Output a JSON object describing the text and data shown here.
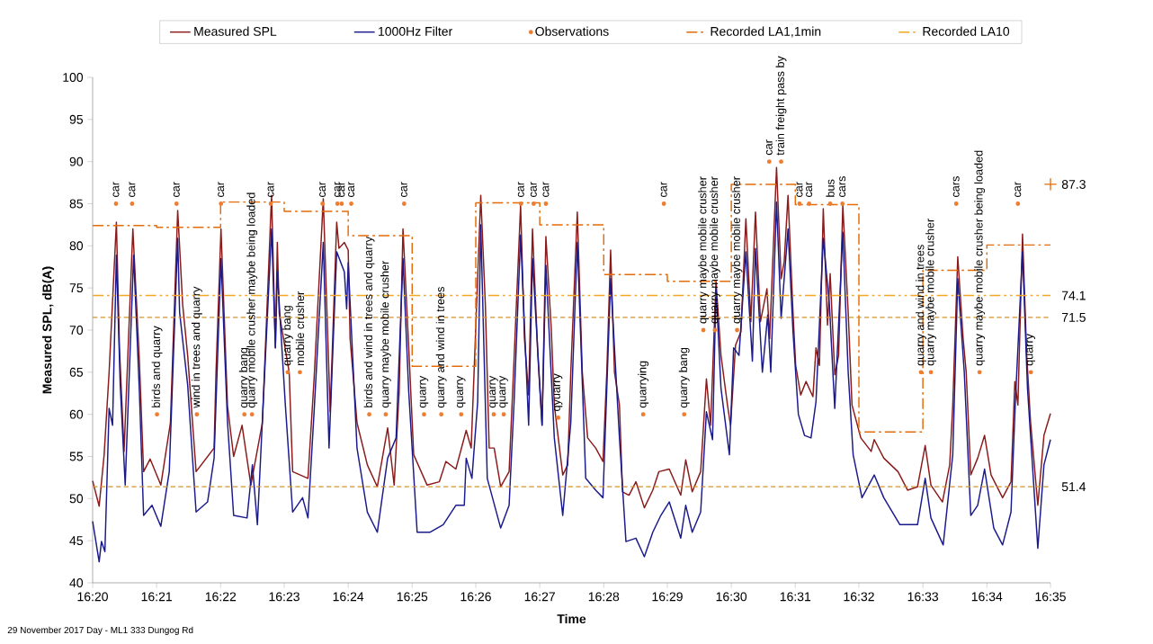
{
  "chart_data": {
    "type": "line",
    "xlabel": "Time",
    "ylabel": "Measured SPL, dB(A)",
    "xlim": [
      16.3333,
      16.5833
    ],
    "ylim": [
      40,
      100
    ],
    "xticks": [
      {
        "value": 16.3333,
        "label": "16:20"
      },
      {
        "value": 16.35,
        "label": "16:21"
      },
      {
        "value": 16.3667,
        "label": "16:22"
      },
      {
        "value": 16.3833,
        "label": "16:23"
      },
      {
        "value": 16.4,
        "label": "16:24"
      },
      {
        "value": 16.4167,
        "label": "16:25"
      },
      {
        "value": 16.4333,
        "label": "16:26"
      },
      {
        "value": 16.45,
        "label": "16:27"
      },
      {
        "value": 16.4667,
        "label": "16:28"
      },
      {
        "value": 16.4833,
        "label": "16:29"
      },
      {
        "value": 16.5,
        "label": "16:30"
      },
      {
        "value": 16.5167,
        "label": "16:31"
      },
      {
        "value": 16.5333,
        "label": "16:32"
      },
      {
        "value": 16.55,
        "label": "16:33"
      },
      {
        "value": 16.5667,
        "label": "16:34"
      },
      {
        "value": 16.5833,
        "label": "16:35"
      }
    ],
    "yticks": [
      40,
      45,
      50,
      55,
      60,
      65,
      70,
      75,
      80,
      85,
      90,
      95,
      100
    ],
    "legend": "top",
    "series": [
      {
        "name": "Measured SPL",
        "color": "#8b1a1a",
        "x": [
          16.3333,
          16.335,
          16.3363,
          16.3376,
          16.3395,
          16.3403,
          16.3415,
          16.3438,
          16.3455,
          16.3466,
          16.3483,
          16.3511,
          16.3536,
          16.3555,
          16.3568,
          16.3581,
          16.3603,
          16.365,
          16.3655,
          16.3668,
          16.3685,
          16.3701,
          16.3723,
          16.3746,
          16.3776,
          16.38,
          16.381,
          16.3815,
          16.382,
          16.3846,
          16.3855,
          16.3895,
          16.3911,
          16.3935,
          16.3953,
          16.397,
          16.3976,
          16.399,
          16.4,
          16.4005,
          16.4023,
          16.405,
          16.4076,
          16.4103,
          16.412,
          16.4133,
          16.4143,
          16.4158,
          16.4171,
          16.4206,
          16.4238,
          16.4255,
          16.4281,
          16.4308,
          16.4321,
          16.4331,
          16.4346,
          16.4358,
          16.4368,
          16.4381,
          16.4398,
          16.442,
          16.4433,
          16.445,
          16.446,
          16.4471,
          16.4481,
          16.4495,
          16.4506,
          16.4516,
          16.453,
          16.4538,
          16.456,
          16.4573,
          16.4581,
          16.4598,
          16.4611,
          16.4625,
          16.4646,
          16.4665,
          16.4675,
          16.4685,
          16.4695,
          16.4708,
          16.4716,
          16.4733,
          16.4751,
          16.4773,
          16.4795,
          16.4811,
          16.4838,
          16.4868,
          16.4881,
          16.4898,
          16.492,
          16.4935,
          16.4946,
          16.496,
          16.4973,
          16.499,
          16.4998,
          16.5011,
          16.5025,
          16.5038,
          16.5051,
          16.5063,
          16.5076,
          16.5093,
          16.51,
          16.5118,
          16.513,
          16.5138,
          16.5148,
          16.5161,
          16.5168,
          16.5181,
          16.5195,
          16.5213,
          16.5221,
          16.523,
          16.524,
          16.5251,
          16.5258,
          16.527,
          16.528,
          16.5291,
          16.5305,
          16.5315,
          16.5338,
          16.5365,
          16.5373,
          16.5398,
          16.5435,
          16.546,
          16.5486,
          16.5506,
          16.5521,
          16.5551,
          16.557,
          16.5578,
          16.5591,
          16.5605,
          16.5613,
          16.5625,
          16.5643,
          16.5661,
          16.5678,
          16.5708,
          16.573,
          16.574,
          16.5748,
          16.576,
          16.5771,
          16.5781,
          16.58,
          16.5816,
          16.5833
        ],
        "values": [
          52.1,
          49.1,
          55.2,
          65,
          82.8,
          67.9,
          55.6,
          82,
          66.3,
          53.2,
          54.7,
          51.6,
          59,
          84.2,
          73,
          67,
          53.2,
          56,
          65,
          82,
          61,
          55,
          58.7,
          51.6,
          59,
          86,
          67.9,
          80.4,
          72,
          65,
          53.2,
          52.4,
          64.2,
          85.6,
          60.3,
          82.8,
          79.7,
          80.4,
          79.5,
          69,
          59,
          54,
          51.4,
          58.4,
          51.6,
          62.6,
          82,
          67.9,
          55.2,
          51.6,
          52,
          54.4,
          53.5,
          58.1,
          56,
          67.9,
          86,
          73,
          56,
          56,
          51.4,
          53.2,
          66.6,
          84.8,
          69,
          62.3,
          82,
          67,
          58.7,
          81.1,
          70.2,
          61.1,
          52.8,
          54,
          65,
          84,
          65,
          57.2,
          56,
          54.4,
          65,
          79.5,
          65,
          61.1,
          50.8,
          50.4,
          52,
          48.9,
          51,
          53.2,
          53.5,
          50.4,
          54.6,
          50.8,
          53.2,
          64.2,
          58.7,
          75.8,
          67,
          61.1,
          58.7,
          68.2,
          69.8,
          83.2,
          71,
          84,
          71,
          74.9,
          69,
          89.3,
          76.1,
          78.1,
          86,
          72.1,
          65.8,
          62.3,
          63.9,
          62.1,
          67.9,
          65.8,
          84.4,
          70.6,
          76.7,
          64.7,
          67,
          84.8,
          72.1,
          61.1,
          57.2,
          55.6,
          57,
          54.8,
          53.2,
          51,
          51.4,
          56.3,
          51.6,
          49.6,
          54,
          61.1,
          78.7,
          69,
          65,
          52.8,
          54.8,
          57.5,
          52.8,
          50.1,
          52,
          63.9,
          61.1,
          81.4,
          67,
          59.1,
          49.2,
          57.5,
          60.1
        ]
      },
      {
        "name": "1000Hz Filter",
        "color": "#1a1a8c",
        "x": [
          16.3333,
          16.335,
          16.3356,
          16.3365,
          16.3376,
          16.3385,
          16.3395,
          16.3405,
          16.3418,
          16.344,
          16.3455,
          16.3466,
          16.3488,
          16.3511,
          16.3533,
          16.3555,
          16.356,
          16.3581,
          16.3603,
          16.3633,
          16.365,
          16.3668,
          16.3685,
          16.3701,
          16.3736,
          16.375,
          16.3763,
          16.38,
          16.381,
          16.3815,
          16.3836,
          16.3855,
          16.3881,
          16.3895,
          16.3911,
          16.3935,
          16.395,
          16.397,
          16.399,
          16.3996,
          16.4,
          16.4023,
          16.405,
          16.4076,
          16.4103,
          16.4125,
          16.4143,
          16.4158,
          16.418,
          16.4213,
          16.4248,
          16.4281,
          16.4303,
          16.4308,
          16.4323,
          16.4338,
          16.4346,
          16.4363,
          16.4398,
          16.442,
          16.4433,
          16.445,
          16.4471,
          16.4481,
          16.4506,
          16.4516,
          16.4538,
          16.456,
          16.4581,
          16.4598,
          16.462,
          16.4646,
          16.4665,
          16.4685,
          16.4708,
          16.4725,
          16.4751,
          16.4773,
          16.4795,
          16.4816,
          16.4838,
          16.4868,
          16.4881,
          16.4898,
          16.492,
          16.4935,
          16.4951,
          16.496,
          16.4973,
          16.4995,
          16.5006,
          16.502,
          16.5038,
          16.5055,
          16.5063,
          16.5081,
          16.5095,
          16.5103,
          16.5118,
          16.513,
          16.5148,
          16.5161,
          16.5175,
          16.5191,
          16.5208,
          16.5221,
          16.524,
          16.5256,
          16.527,
          16.5291,
          16.5305,
          16.5318,
          16.5341,
          16.5373,
          16.5398,
          16.544,
          16.5486,
          16.5506,
          16.5521,
          16.5553,
          16.5578,
          16.5591,
          16.5608,
          16.5625,
          16.5643,
          16.5661,
          16.5685,
          16.5708,
          16.573,
          16.5741,
          16.576,
          16.5773,
          16.58,
          16.5816,
          16.5833
        ],
        "values": [
          47.3,
          42.5,
          44.9,
          43.7,
          60.7,
          58.7,
          78.9,
          63.5,
          51.6,
          78.9,
          62.7,
          48,
          49.2,
          46.7,
          53.2,
          80.9,
          72.1,
          63.5,
          48.4,
          49.6,
          54.8,
          78.5,
          59.1,
          48,
          47.7,
          54,
          46.9,
          82,
          67.9,
          76.9,
          61.1,
          48.4,
          50.1,
          47.7,
          60.3,
          80.4,
          56,
          79.3,
          76.9,
          72.5,
          78,
          56,
          48.4,
          46,
          54.8,
          57.2,
          78.5,
          62.7,
          46,
          46,
          46.9,
          49.2,
          49.2,
          54.8,
          52.4,
          61.5,
          82.5,
          52.4,
          46.5,
          49.2,
          61.5,
          81.3,
          58.7,
          78.5,
          58.7,
          77.7,
          57.2,
          48,
          59,
          80.4,
          52.4,
          51,
          50.1,
          76.1,
          57.2,
          44.9,
          45.3,
          43.1,
          46,
          48,
          49.6,
          45.3,
          49.2,
          46,
          48.4,
          60.3,
          57,
          74.9,
          63.1,
          55.2,
          67.9,
          67,
          79.3,
          66.3,
          79.7,
          65,
          71.8,
          65,
          85.2,
          71.4,
          82,
          69.8,
          60,
          57.5,
          57.2,
          61.5,
          80.9,
          73,
          60.7,
          81.6,
          65,
          55.2,
          50.1,
          52.8,
          50.1,
          46.9,
          46.9,
          52.4,
          47.7,
          44.5,
          55.2,
          76.1,
          65,
          48,
          49.2,
          53.5,
          46.5,
          44.5,
          48.4,
          61.1,
          79.3,
          63.1,
          44.1,
          54,
          57
        ]
      },
      {
        "name": "Observations",
        "type": "scatter",
        "color": "#ed7d31",
        "marker": "circle",
        "x": [
          16.3394,
          16.3436,
          16.3501,
          16.3552,
          16.3605,
          16.3668,
          16.3729,
          16.3749,
          16.3798,
          16.3842,
          16.3874,
          16.3933,
          16.3972,
          16.3983,
          16.4008,
          16.4055,
          16.4098,
          16.4146,
          16.4198,
          16.4243,
          16.4295,
          16.438,
          16.4406,
          16.4451,
          16.4484,
          16.4516,
          16.4548,
          16.477,
          16.4824,
          16.4877,
          16.4927,
          16.4957,
          16.5015,
          16.5099,
          16.513,
          16.5178,
          16.5203,
          16.5258,
          16.529,
          16.5495,
          16.5521,
          16.5587,
          16.5648,
          16.5748,
          16.5782
        ],
        "values": [
          85,
          85,
          60,
          85,
          60,
          85,
          60,
          60,
          85,
          65,
          65,
          85,
          85,
          85,
          85,
          60,
          60,
          85,
          60,
          60,
          60,
          60,
          60,
          85,
          85,
          85,
          59.6,
          60,
          85,
          60,
          70,
          70,
          70,
          90,
          90,
          85,
          85,
          85,
          85,
          65,
          65,
          85,
          65,
          85,
          65
        ]
      },
      {
        "name": "Recorded LA1,1min",
        "type": "step",
        "color": "#e46c0a",
        "line_style": "dashdot",
        "x": [
          16.3333,
          16.35,
          16.3667,
          16.3833,
          16.4,
          16.4167,
          16.4333,
          16.45,
          16.4667,
          16.4833,
          16.5,
          16.5167,
          16.5333,
          16.55,
          16.5667,
          16.5833
        ],
        "values": [
          82.4,
          82.2,
          85.2,
          84.1,
          81.2,
          65.7,
          85.1,
          82.5,
          76.6,
          75.8,
          87.3,
          84.9,
          57.9,
          77.1,
          80.1,
          80.1
        ]
      },
      {
        "name": "Recorded LA10",
        "color": "#f5a623",
        "line_style": "dashdotdot",
        "x": [
          16.3333,
          16.5833
        ],
        "values": [
          74.1,
          74.1
        ],
        "value_labels": [
          null,
          "74.1"
        ]
      },
      {
        "type": "scatter",
        "color": "#e46c0a",
        "marker": "cross",
        "x": [
          16.5833
        ],
        "values": [
          87.3
        ],
        "value_labels": [
          "87.3"
        ]
      }
    ],
    "ref_lines": [
      {
        "axis": "y",
        "value": 71.5,
        "label": "71.5",
        "color": "#d4942f",
        "line_style": "dashed"
      },
      {
        "axis": "y",
        "value": 51.4,
        "label": "51.4",
        "color": "#d4942f",
        "line_style": "dashed"
      }
    ],
    "annotations": [
      "29 November 2017 Day - ML1 333 Dungog Rd",
      {
        "text": "car",
        "x": 16.3394,
        "y": 85
      },
      {
        "text": "car",
        "x": 16.3436,
        "y": 85
      },
      {
        "text": "birds and quarry",
        "x": 16.3501,
        "y": 60
      },
      {
        "text": "car",
        "x": 16.3552,
        "y": 85
      },
      {
        "text": "wind in trees and quarry",
        "x": 16.3605,
        "y": 60
      },
      {
        "text": "car",
        "x": 16.3668,
        "y": 85
      },
      {
        "text": "quarry bang",
        "x": 16.3729,
        "y": 60
      },
      {
        "text": "quarry mobile crusher maybe being loaded",
        "x": 16.3749,
        "y": 60
      },
      {
        "text": "car",
        "x": 16.3798,
        "y": 85
      },
      {
        "text": "quarry bang",
        "x": 16.3842,
        "y": 65
      },
      {
        "text": "mobile crusher",
        "x": 16.3874,
        "y": 65
      },
      {
        "text": "car",
        "x": 16.3933,
        "y": 85
      },
      {
        "text": "car",
        "x": 16.3972,
        "y": 85
      },
      {
        "text": "car",
        "x": 16.3983,
        "y": 85
      },
      {
        "text": "car",
        "x": 16.4008,
        "y": 85
      },
      {
        "text": "birds and wind in trees and quarry",
        "x": 16.4055,
        "y": 60
      },
      {
        "text": "quarry maybe mobile crusher",
        "x": 16.4098,
        "y": 60
      },
      {
        "text": "car",
        "x": 16.4146,
        "y": 85
      },
      {
        "text": "quarry",
        "x": 16.4198,
        "y": 60
      },
      {
        "text": "quarry and wind in trees",
        "x": 16.4243,
        "y": 60
      },
      {
        "text": "quarry",
        "x": 16.4295,
        "y": 60
      },
      {
        "text": "quarry",
        "x": 16.438,
        "y": 60
      },
      {
        "text": "quarry",
        "x": 16.4406,
        "y": 60
      },
      {
        "text": "car",
        "x": 16.4451,
        "y": 85
      },
      {
        "text": "car",
        "x": 16.4484,
        "y": 85
      },
      {
        "text": "car",
        "x": 16.4516,
        "y": 85
      },
      {
        "text": "qyuarry",
        "x": 16.4548,
        "y": 59.6
      },
      {
        "text": "quarrying",
        "x": 16.477,
        "y": 60
      },
      {
        "text": "car",
        "x": 16.4824,
        "y": 85
      },
      {
        "text": "quarry bang",
        "x": 16.4877,
        "y": 60
      },
      {
        "text": "quarry  maybe mobile crusher",
        "x": 16.4927,
        "y": 70
      },
      {
        "text": "quarry maybe mobile crusher",
        "x": 16.4957,
        "y": 70
      },
      {
        "text": "quarry maybe mobile crusher",
        "x": 16.5015,
        "y": 70
      },
      {
        "text": "car",
        "x": 16.5099,
        "y": 90
      },
      {
        "text": "train freight pass by",
        "x": 16.513,
        "y": 90
      },
      {
        "text": "car",
        "x": 16.5178,
        "y": 85
      },
      {
        "text": "car",
        "x": 16.5203,
        "y": 85
      },
      {
        "text": "bus",
        "x": 16.5258,
        "y": 85
      },
      {
        "text": "cars",
        "x": 16.529,
        "y": 85
      },
      {
        "text": "quarry and wind in trees",
        "x": 16.5495,
        "y": 65
      },
      {
        "text": "quarry maybe mobile crusher",
        "x": 16.5521,
        "y": 65
      },
      {
        "text": "cars",
        "x": 16.5587,
        "y": 85
      },
      {
        "text": "quarry maybe mobile crusher being loaded",
        "x": 16.5648,
        "y": 65
      },
      {
        "text": "car",
        "x": 16.5748,
        "y": 85
      },
      {
        "text": "quarry",
        "x": 16.5782,
        "y": 65
      }
    ]
  }
}
